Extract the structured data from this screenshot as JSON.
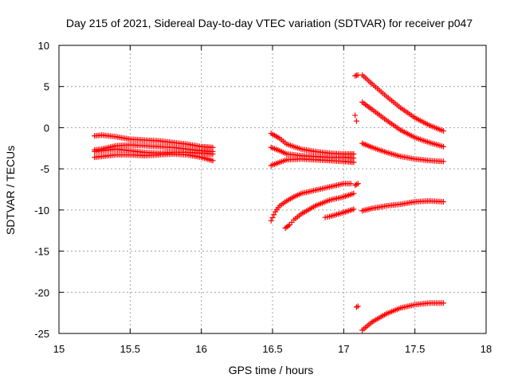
{
  "chart_data": {
    "type": "scatter",
    "title": "Day 215 of 2021, Sidereal Day-to-day VTEC variation (SDTVAR) for receiver p047",
    "xlabel": "GPS time / hours",
    "ylabel": "SDTVAR / TECUs",
    "xlim": [
      15,
      18
    ],
    "ylim": [
      -25,
      10
    ],
    "xticks": [
      "15",
      "15.5",
      "16",
      "16.5",
      "17",
      "17.5",
      "18"
    ],
    "yticks": [
      "10",
      "5",
      "0",
      "-5",
      "-10",
      "-15",
      "-20",
      "-25"
    ],
    "grid": true,
    "marker": "plus",
    "colors": {
      "points": "#ff0000",
      "grid": "#a0a0a0",
      "axis": "#000000"
    },
    "tracks": [
      {
        "x": [
          15.25,
          15.3,
          15.4,
          15.5,
          15.6,
          15.7,
          15.8,
          15.9,
          16.0,
          16.08
        ],
        "y": [
          -1.0,
          -0.9,
          -1.1,
          -1.4,
          -1.5,
          -1.6,
          -1.8,
          -2.0,
          -2.3,
          -2.4
        ]
      },
      {
        "x": [
          15.25,
          15.3,
          15.4,
          15.5,
          15.6,
          15.7,
          15.8,
          15.9,
          16.0,
          16.08
        ],
        "y": [
          -2.7,
          -2.6,
          -2.2,
          -2.1,
          -2.2,
          -2.3,
          -2.4,
          -2.6,
          -2.8,
          -2.9
        ]
      },
      {
        "x": [
          15.25,
          15.3,
          15.4,
          15.5,
          15.6,
          15.7,
          15.8,
          15.9,
          16.0,
          16.08
        ],
        "y": [
          -2.9,
          -2.8,
          -2.6,
          -2.8,
          -3.0,
          -3.1,
          -3.0,
          -3.0,
          -3.1,
          -3.2
        ]
      },
      {
        "x": [
          15.25,
          15.3,
          15.4,
          15.5,
          15.6,
          15.7,
          15.8,
          15.9,
          16.0,
          16.08
        ],
        "y": [
          -3.6,
          -3.5,
          -3.3,
          -3.3,
          -3.4,
          -3.3,
          -3.2,
          -3.3,
          -3.6,
          -4.0
        ]
      },
      {
        "x": [
          16.49,
          16.55,
          16.6,
          16.7,
          16.8,
          16.9,
          17.0,
          17.07
        ],
        "y": [
          -0.7,
          -1.3,
          -2.0,
          -2.6,
          -2.9,
          -3.1,
          -3.2,
          -3.2
        ]
      },
      {
        "x": [
          16.49,
          16.55,
          16.6,
          16.7,
          16.8,
          16.9,
          17.0,
          17.07
        ],
        "y": [
          -2.4,
          -2.8,
          -3.2,
          -3.4,
          -3.5,
          -3.6,
          -3.6,
          -3.7
        ]
      },
      {
        "x": [
          16.49,
          16.55,
          16.6,
          16.7,
          16.8,
          16.9,
          17.0,
          17.07
        ],
        "y": [
          -4.6,
          -4.2,
          -3.9,
          -3.8,
          -3.9,
          -4.0,
          -4.1,
          -4.2
        ]
      },
      {
        "x": [
          16.49,
          16.52,
          16.55,
          16.6,
          16.65,
          16.7,
          16.8,
          16.9,
          17.0,
          17.05
        ],
        "y": [
          -11.3,
          -10.2,
          -9.5,
          -8.9,
          -8.4,
          -8.0,
          -7.6,
          -7.2,
          -6.8,
          -6.8
        ]
      },
      {
        "x": [
          16.59,
          16.62,
          16.65,
          16.7,
          16.8,
          16.9,
          17.0,
          17.07
        ],
        "y": [
          -12.2,
          -11.8,
          -11.2,
          -10.5,
          -9.5,
          -8.8,
          -8.4,
          -8.0
        ]
      },
      {
        "x": [
          16.87,
          16.9,
          17.0,
          17.07
        ],
        "y": [
          -10.9,
          -10.8,
          -10.3,
          -9.9
        ]
      },
      {
        "x": [
          17.08,
          17.1
        ],
        "y": [
          -7.0,
          -6.8
        ]
      },
      {
        "x": [
          17.08,
          17.1
        ],
        "y": [
          6.3,
          6.4
        ]
      },
      {
        "x": [
          17.08,
          17.09
        ],
        "y": [
          1.5,
          0.8
        ]
      },
      {
        "x": [
          17.09,
          17.1
        ],
        "y": [
          -21.8,
          -21.7
        ]
      },
      {
        "x": [
          17.13,
          17.2,
          17.3,
          17.4,
          17.5,
          17.6,
          17.7
        ],
        "y": [
          6.4,
          5.3,
          3.8,
          2.4,
          1.2,
          0.3,
          -0.4
        ]
      },
      {
        "x": [
          17.13,
          17.2,
          17.3,
          17.4,
          17.5,
          17.6,
          17.7
        ],
        "y": [
          3.1,
          2.2,
          0.9,
          -0.3,
          -1.2,
          -1.8,
          -2.3
        ]
      },
      {
        "x": [
          17.13,
          17.2,
          17.3,
          17.4,
          17.5,
          17.6,
          17.7
        ],
        "y": [
          -1.9,
          -2.4,
          -3.0,
          -3.5,
          -3.8,
          -4.0,
          -4.1
        ]
      },
      {
        "x": [
          17.13,
          17.2,
          17.3,
          17.4,
          17.5,
          17.6,
          17.7
        ],
        "y": [
          -10.1,
          -9.8,
          -9.5,
          -9.3,
          -9.0,
          -8.9,
          -9.0
        ]
      },
      {
        "x": [
          17.13,
          17.2,
          17.3,
          17.4,
          17.5,
          17.6,
          17.7
        ],
        "y": [
          -24.6,
          -23.6,
          -22.6,
          -21.9,
          -21.5,
          -21.3,
          -21.3
        ]
      }
    ]
  }
}
